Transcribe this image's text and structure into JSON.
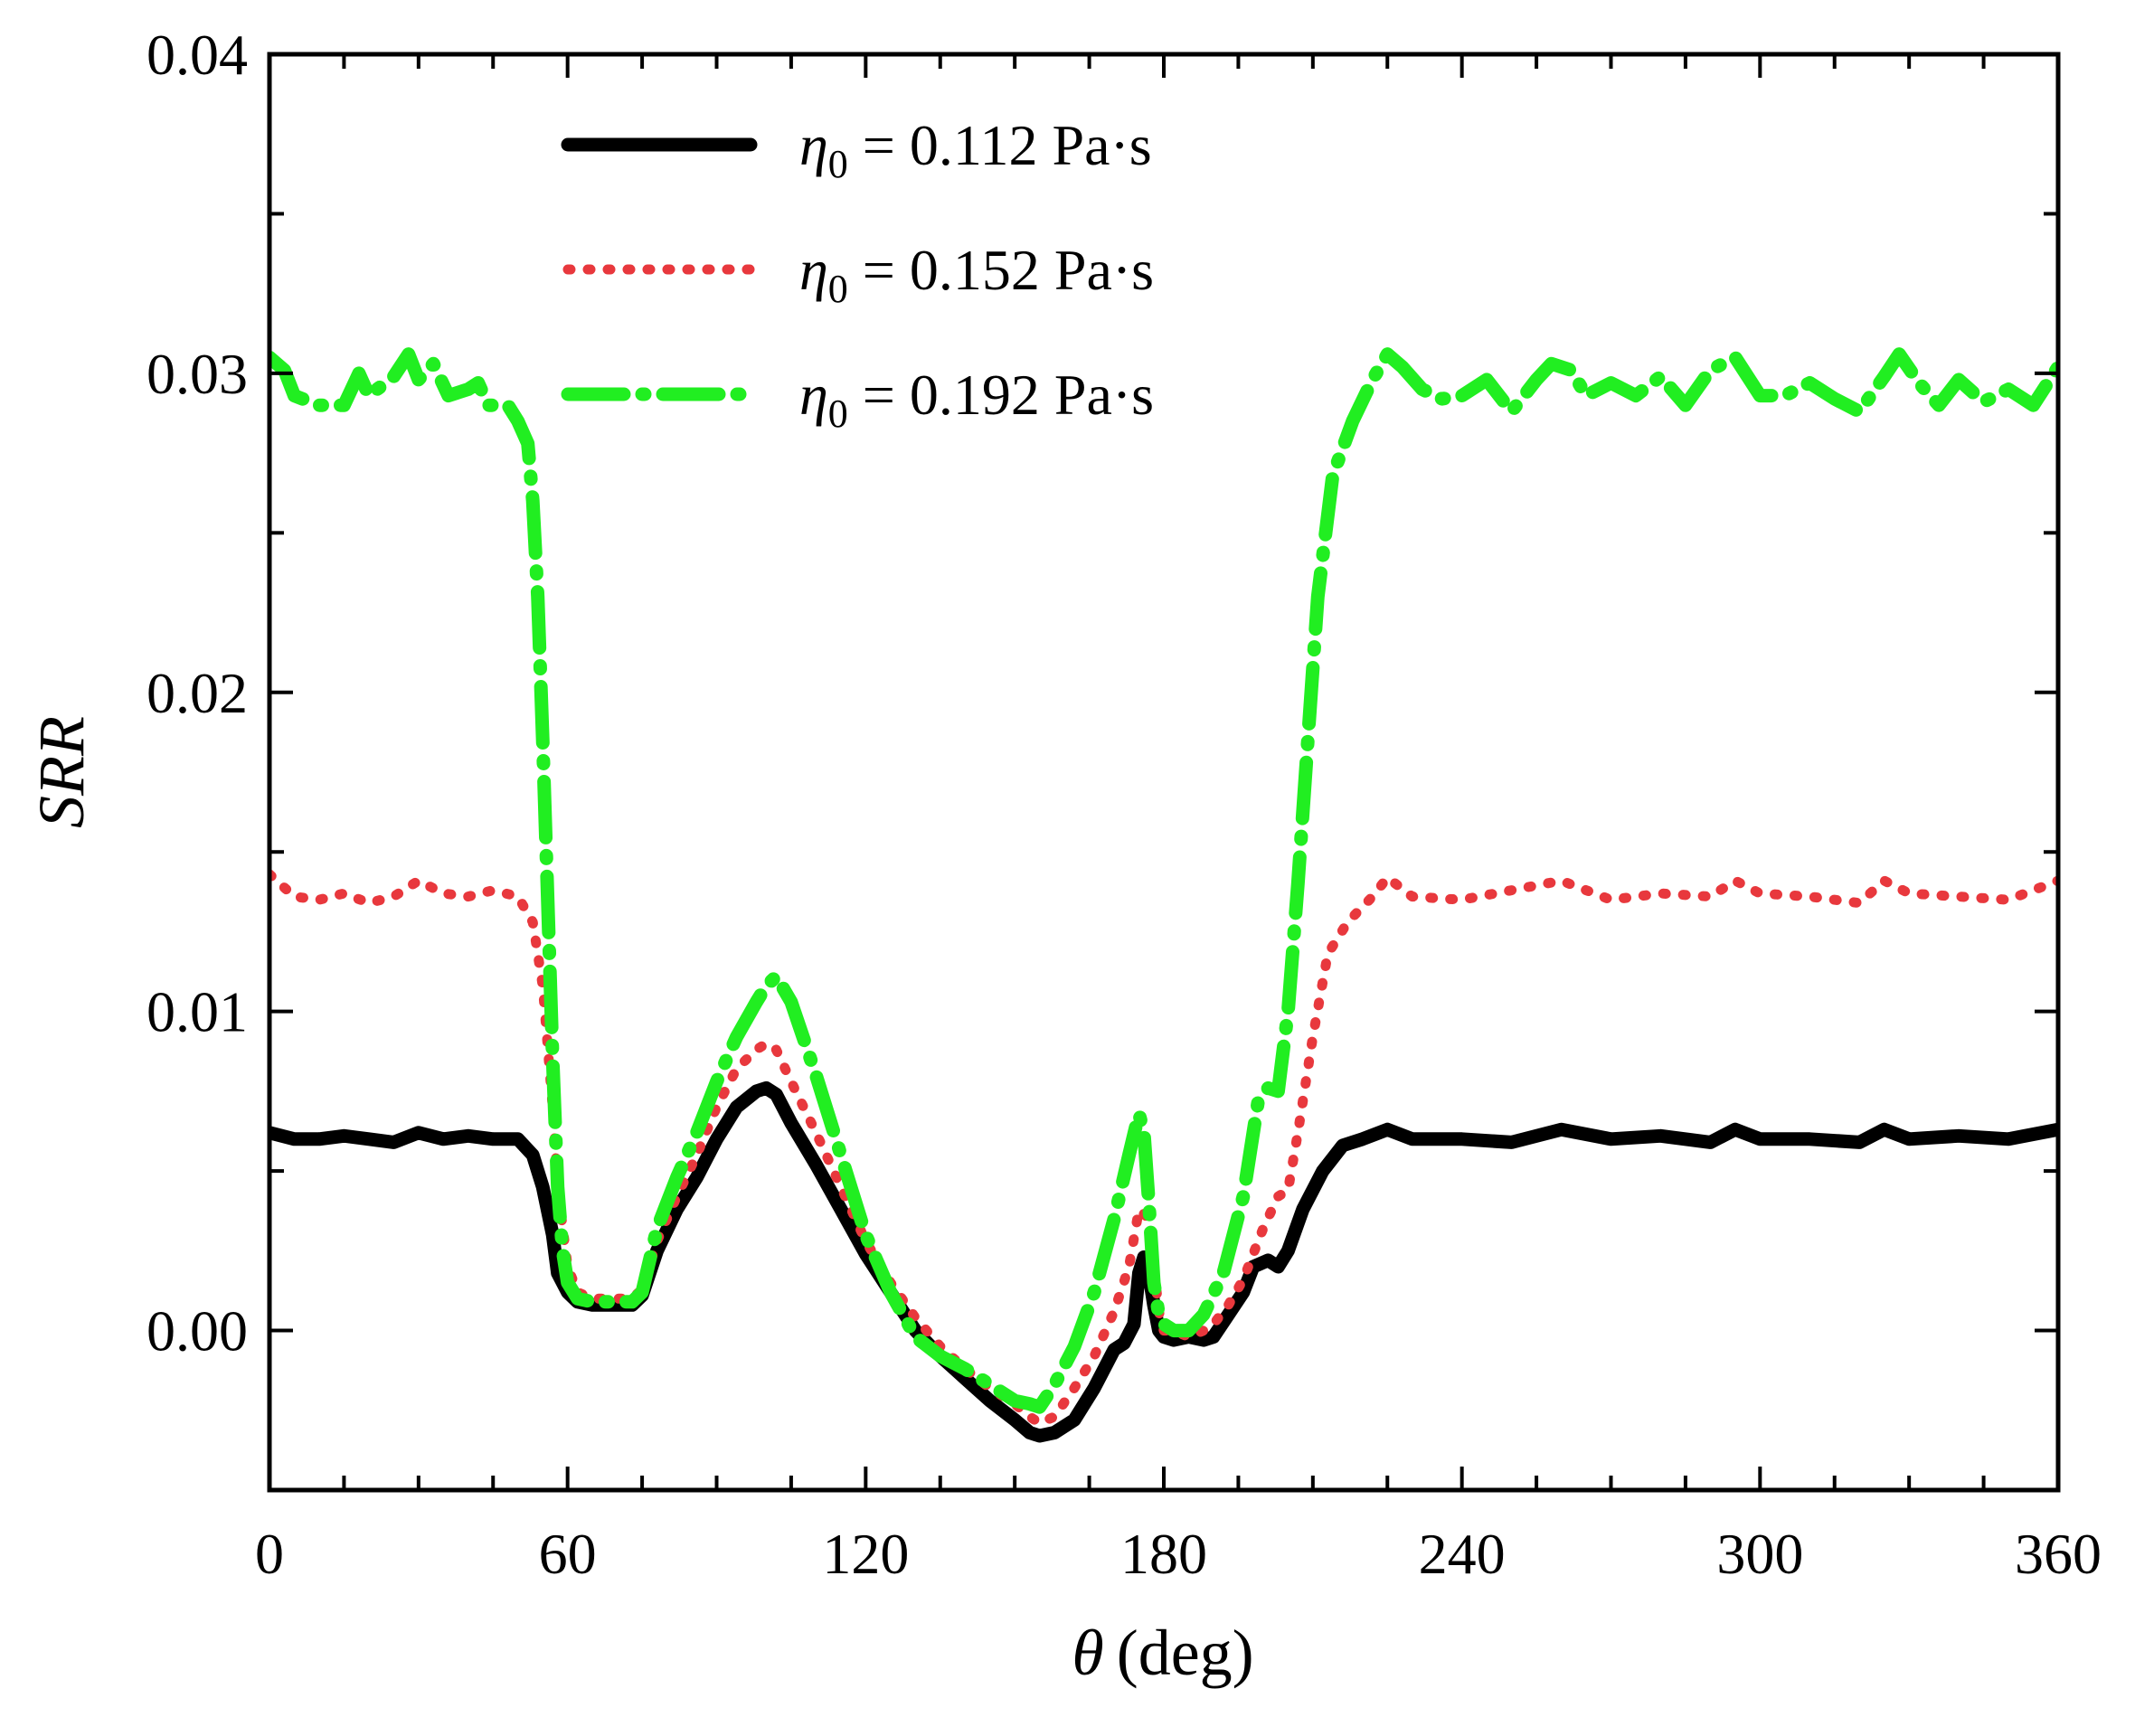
{
  "chart_data": {
    "type": "line",
    "title": "",
    "xlabel": {
      "symbol": "θ",
      "unit": "(deg)"
    },
    "ylabel": "SRR",
    "xlim": [
      0,
      360
    ],
    "ylim": [
      -0.005,
      0.04
    ],
    "x_ticks": [
      0,
      60,
      120,
      180,
      240,
      300,
      360
    ],
    "x_tick_labels": [
      "0",
      "60",
      "120",
      "180",
      "240",
      "300",
      "360"
    ],
    "y_ticks": [
      0.0,
      0.01,
      0.02,
      0.03,
      0.04
    ],
    "y_tick_labels": [
      "0.00",
      "0.01",
      "0.02",
      "0.03",
      "0.04"
    ],
    "legend_position": "top-center",
    "series": [
      {
        "name": "η0 = 0.112 Pa·s",
        "legend": {
          "symbol": "η",
          "sub": "0",
          "rest": " = 0.112 Pa·s"
        },
        "color": "#000000",
        "style": "solid",
        "x": [
          0,
          5,
          10,
          15,
          20,
          25,
          30,
          35,
          40,
          45,
          50,
          53,
          55,
          57,
          58,
          60,
          62,
          65,
          70,
          73,
          75,
          78,
          82,
          86,
          90,
          94,
          98,
          100,
          102,
          105,
          110,
          115,
          120,
          125,
          130,
          135,
          140,
          145,
          150,
          153,
          155,
          158,
          162,
          166,
          170,
          172,
          174,
          175,
          176,
          177,
          178,
          179,
          180,
          182,
          185,
          188,
          190,
          193,
          196,
          198,
          201,
          203,
          205,
          208,
          212,
          216,
          220,
          225,
          230,
          240,
          250,
          260,
          270,
          280,
          290,
          295,
          300,
          310,
          320,
          325,
          330,
          340,
          350,
          360
        ],
        "values": [
          0.0062,
          0.006,
          0.006,
          0.0061,
          0.006,
          0.0059,
          0.0062,
          0.006,
          0.0061,
          0.006,
          0.006,
          0.0055,
          0.0045,
          0.003,
          0.0018,
          0.0012,
          0.0009,
          0.0008,
          0.0008,
          0.0008,
          0.0011,
          0.0025,
          0.0038,
          0.0048,
          0.006,
          0.007,
          0.0075,
          0.0076,
          0.0074,
          0.0065,
          0.0052,
          0.0038,
          0.0024,
          0.0012,
          0.0,
          -0.0008,
          -0.0015,
          -0.0022,
          -0.0028,
          -0.0032,
          -0.0033,
          -0.0032,
          -0.0028,
          -0.0018,
          -0.0006,
          -0.0004,
          0.0002,
          0.0018,
          0.0023,
          0.0018,
          0.0008,
          0.0,
          -0.0002,
          -0.0003,
          -0.0002,
          -0.0003,
          -0.0002,
          0.0005,
          0.0012,
          0.002,
          0.0022,
          0.002,
          0.0025,
          0.0038,
          0.005,
          0.0058,
          0.006,
          0.0063,
          0.006,
          0.006,
          0.0059,
          0.0063,
          0.006,
          0.0061,
          0.0059,
          0.0063,
          0.006,
          0.006,
          0.0059,
          0.0063,
          0.006,
          0.0061,
          0.006,
          0.0063
        ]
      },
      {
        "name": "η0 = 0.152 Pa·s",
        "legend": {
          "symbol": "η",
          "sub": "0",
          "rest": " = 0.152 Pa·s"
        },
        "color": "#e8383d",
        "style": "dotted",
        "x": [
          0,
          5,
          10,
          15,
          20,
          25,
          30,
          35,
          40,
          45,
          50,
          53,
          55,
          57,
          58,
          60,
          62,
          65,
          70,
          73,
          75,
          78,
          82,
          86,
          90,
          94,
          98,
          100,
          102,
          105,
          110,
          115,
          120,
          125,
          130,
          135,
          140,
          145,
          150,
          153,
          155,
          158,
          162,
          166,
          170,
          173,
          175,
          177,
          178,
          179,
          180,
          182,
          185,
          188,
          190,
          193,
          196,
          200,
          203,
          205,
          207,
          210,
          213,
          217,
          222,
          225,
          230,
          240,
          250,
          260,
          270,
          280,
          290,
          295,
          300,
          310,
          320,
          325,
          330,
          340,
          350,
          360
        ],
        "values": [
          0.0143,
          0.0136,
          0.0135,
          0.0137,
          0.0134,
          0.0136,
          0.0141,
          0.0137,
          0.0136,
          0.0138,
          0.0136,
          0.0128,
          0.0108,
          0.007,
          0.0045,
          0.002,
          0.0012,
          0.001,
          0.001,
          0.001,
          0.0013,
          0.0028,
          0.0042,
          0.0055,
          0.007,
          0.0082,
          0.0088,
          0.009,
          0.0088,
          0.0078,
          0.0062,
          0.0045,
          0.0028,
          0.0015,
          0.0004,
          -0.0005,
          -0.0012,
          -0.0018,
          -0.0023,
          -0.0027,
          -0.0029,
          -0.0027,
          -0.0018,
          -0.0008,
          0.0006,
          0.002,
          0.0038,
          0.0035,
          0.002,
          0.0006,
          0.0,
          0.0,
          -0.0002,
          0.0,
          0.0002,
          0.0008,
          0.0016,
          0.0032,
          0.0042,
          0.0044,
          0.0062,
          0.0092,
          0.0118,
          0.0128,
          0.0136,
          0.0142,
          0.0136,
          0.0135,
          0.0138,
          0.0141,
          0.0135,
          0.0137,
          0.0136,
          0.0141,
          0.0137,
          0.0136,
          0.0134,
          0.0141,
          0.0137,
          0.0136,
          0.0135,
          0.0141
        ]
      },
      {
        "name": "η0 = 0.192 Pa·s",
        "legend": {
          "symbol": "η",
          "sub": "0",
          "rest": " = 0.192 Pa·s"
        },
        "color": "#21ee21",
        "style": "dashdot",
        "x": [
          0,
          3,
          5,
          10,
          15,
          18,
          20,
          25,
          28,
          30,
          33,
          36,
          40,
          42,
          44,
          48,
          50,
          52,
          53,
          54,
          55,
          56,
          57,
          58,
          59,
          60,
          62,
          65,
          70,
          73,
          75,
          78,
          82,
          86,
          90,
          94,
          98,
          100,
          102,
          105,
          110,
          115,
          120,
          125,
          130,
          135,
          140,
          145,
          150,
          153,
          155,
          158,
          162,
          166,
          170,
          173,
          175,
          176,
          177,
          178,
          179,
          180,
          182,
          185,
          188,
          192,
          196,
          199,
          201,
          203,
          205,
          207,
          209,
          211,
          214,
          218,
          222,
          225,
          228,
          232,
          236,
          240,
          245,
          250,
          255,
          258,
          262,
          265,
          270,
          275,
          280,
          285,
          290,
          295,
          300,
          305,
          310,
          315,
          320,
          325,
          328,
          332,
          336,
          340,
          345,
          350,
          355,
          360
        ],
        "values": [
          0.0305,
          0.0301,
          0.0293,
          0.029,
          0.029,
          0.03,
          0.0293,
          0.0299,
          0.0306,
          0.0298,
          0.0303,
          0.0293,
          0.0295,
          0.0297,
          0.029,
          0.029,
          0.0285,
          0.0278,
          0.026,
          0.023,
          0.0185,
          0.0135,
          0.0085,
          0.0045,
          0.0025,
          0.0015,
          0.001,
          0.0009,
          0.0009,
          0.0009,
          0.0012,
          0.0032,
          0.0048,
          0.0062,
          0.0078,
          0.0092,
          0.0103,
          0.0108,
          0.0111,
          0.0103,
          0.008,
          0.0055,
          0.003,
          0.0012,
          -0.0002,
          -0.0008,
          -0.0012,
          -0.0017,
          -0.0022,
          -0.0023,
          -0.0024,
          -0.0017,
          -0.0005,
          0.0012,
          0.0035,
          0.0055,
          0.0068,
          0.0062,
          0.004,
          0.0015,
          0.0005,
          0.0002,
          0.0,
          0.0,
          0.0005,
          0.0018,
          0.0042,
          0.0072,
          0.0076,
          0.0075,
          0.01,
          0.014,
          0.0185,
          0.023,
          0.0268,
          0.0285,
          0.0298,
          0.0306,
          0.0302,
          0.0295,
          0.0292,
          0.0293,
          0.0298,
          0.0288,
          0.0298,
          0.0303,
          0.0301,
          0.0293,
          0.0297,
          0.0293,
          0.0299,
          0.029,
          0.0301,
          0.0305,
          0.0293,
          0.0293,
          0.0297,
          0.0292,
          0.0288,
          0.0299,
          0.0306,
          0.0297,
          0.029,
          0.0298,
          0.0291,
          0.0295,
          0.029,
          0.0302
        ]
      }
    ]
  }
}
